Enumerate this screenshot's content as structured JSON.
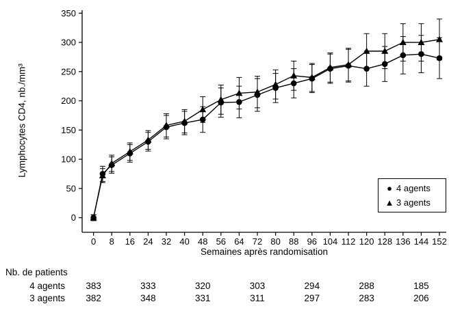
{
  "chart_data": {
    "type": "line",
    "title": "",
    "xlabel": "Semaines après randomisation",
    "ylabel": "Lymphocytes CD4, nb./mm³",
    "ylim": [
      0,
      350
    ],
    "yticks": [
      0,
      50,
      100,
      150,
      200,
      250,
      300,
      350
    ],
    "xticks": [
      0,
      8,
      16,
      24,
      32,
      40,
      48,
      56,
      64,
      72,
      80,
      88,
      96,
      104,
      112,
      120,
      128,
      136,
      144,
      152
    ],
    "x": [
      0,
      4,
      8,
      16,
      24,
      32,
      40,
      48,
      56,
      64,
      72,
      80,
      88,
      96,
      104,
      112,
      120,
      128,
      136,
      144,
      152
    ],
    "grid": false,
    "legend_position": "bottom-right",
    "colors": {
      "line": "#000000",
      "background": "#ffffff"
    },
    "series": [
      {
        "name": "4 agents",
        "marker": "circle",
        "marker_glyph": "●",
        "values": [
          0,
          75,
          90,
          110,
          130,
          155,
          162,
          168,
          197,
          198,
          210,
          222,
          230,
          238,
          255,
          260,
          255,
          263,
          278,
          280,
          273
        ],
        "errors": [
          5,
          13,
          14,
          15,
          16,
          20,
          20,
          22,
          25,
          27,
          28,
          25,
          25,
          24,
          25,
          28,
          30,
          30,
          32,
          32,
          35
        ]
      },
      {
        "name": "3 agents",
        "marker": "triangle",
        "marker_glyph": "▲",
        "values": [
          0,
          72,
          93,
          113,
          133,
          158,
          165,
          185,
          202,
          213,
          215,
          228,
          243,
          240,
          257,
          262,
          285,
          285,
          300,
          300,
          305
        ],
        "errors": [
          5,
          12,
          14,
          15,
          16,
          20,
          20,
          22,
          25,
          27,
          27,
          25,
          25,
          24,
          25,
          28,
          30,
          30,
          32,
          32,
          35
        ]
      }
    ]
  },
  "patients_table": {
    "title": "Nb. de patients",
    "column_weeks": [
      0,
      24,
      48,
      72,
      96,
      120,
      144
    ],
    "rows": [
      {
        "label": "4 agents",
        "values": [
          "383",
          "333",
          "320",
          "303",
          "294",
          "288",
          "185"
        ]
      },
      {
        "label": "3 agents",
        "values": [
          "382",
          "348",
          "331",
          "311",
          "297",
          "283",
          "206"
        ]
      }
    ]
  }
}
